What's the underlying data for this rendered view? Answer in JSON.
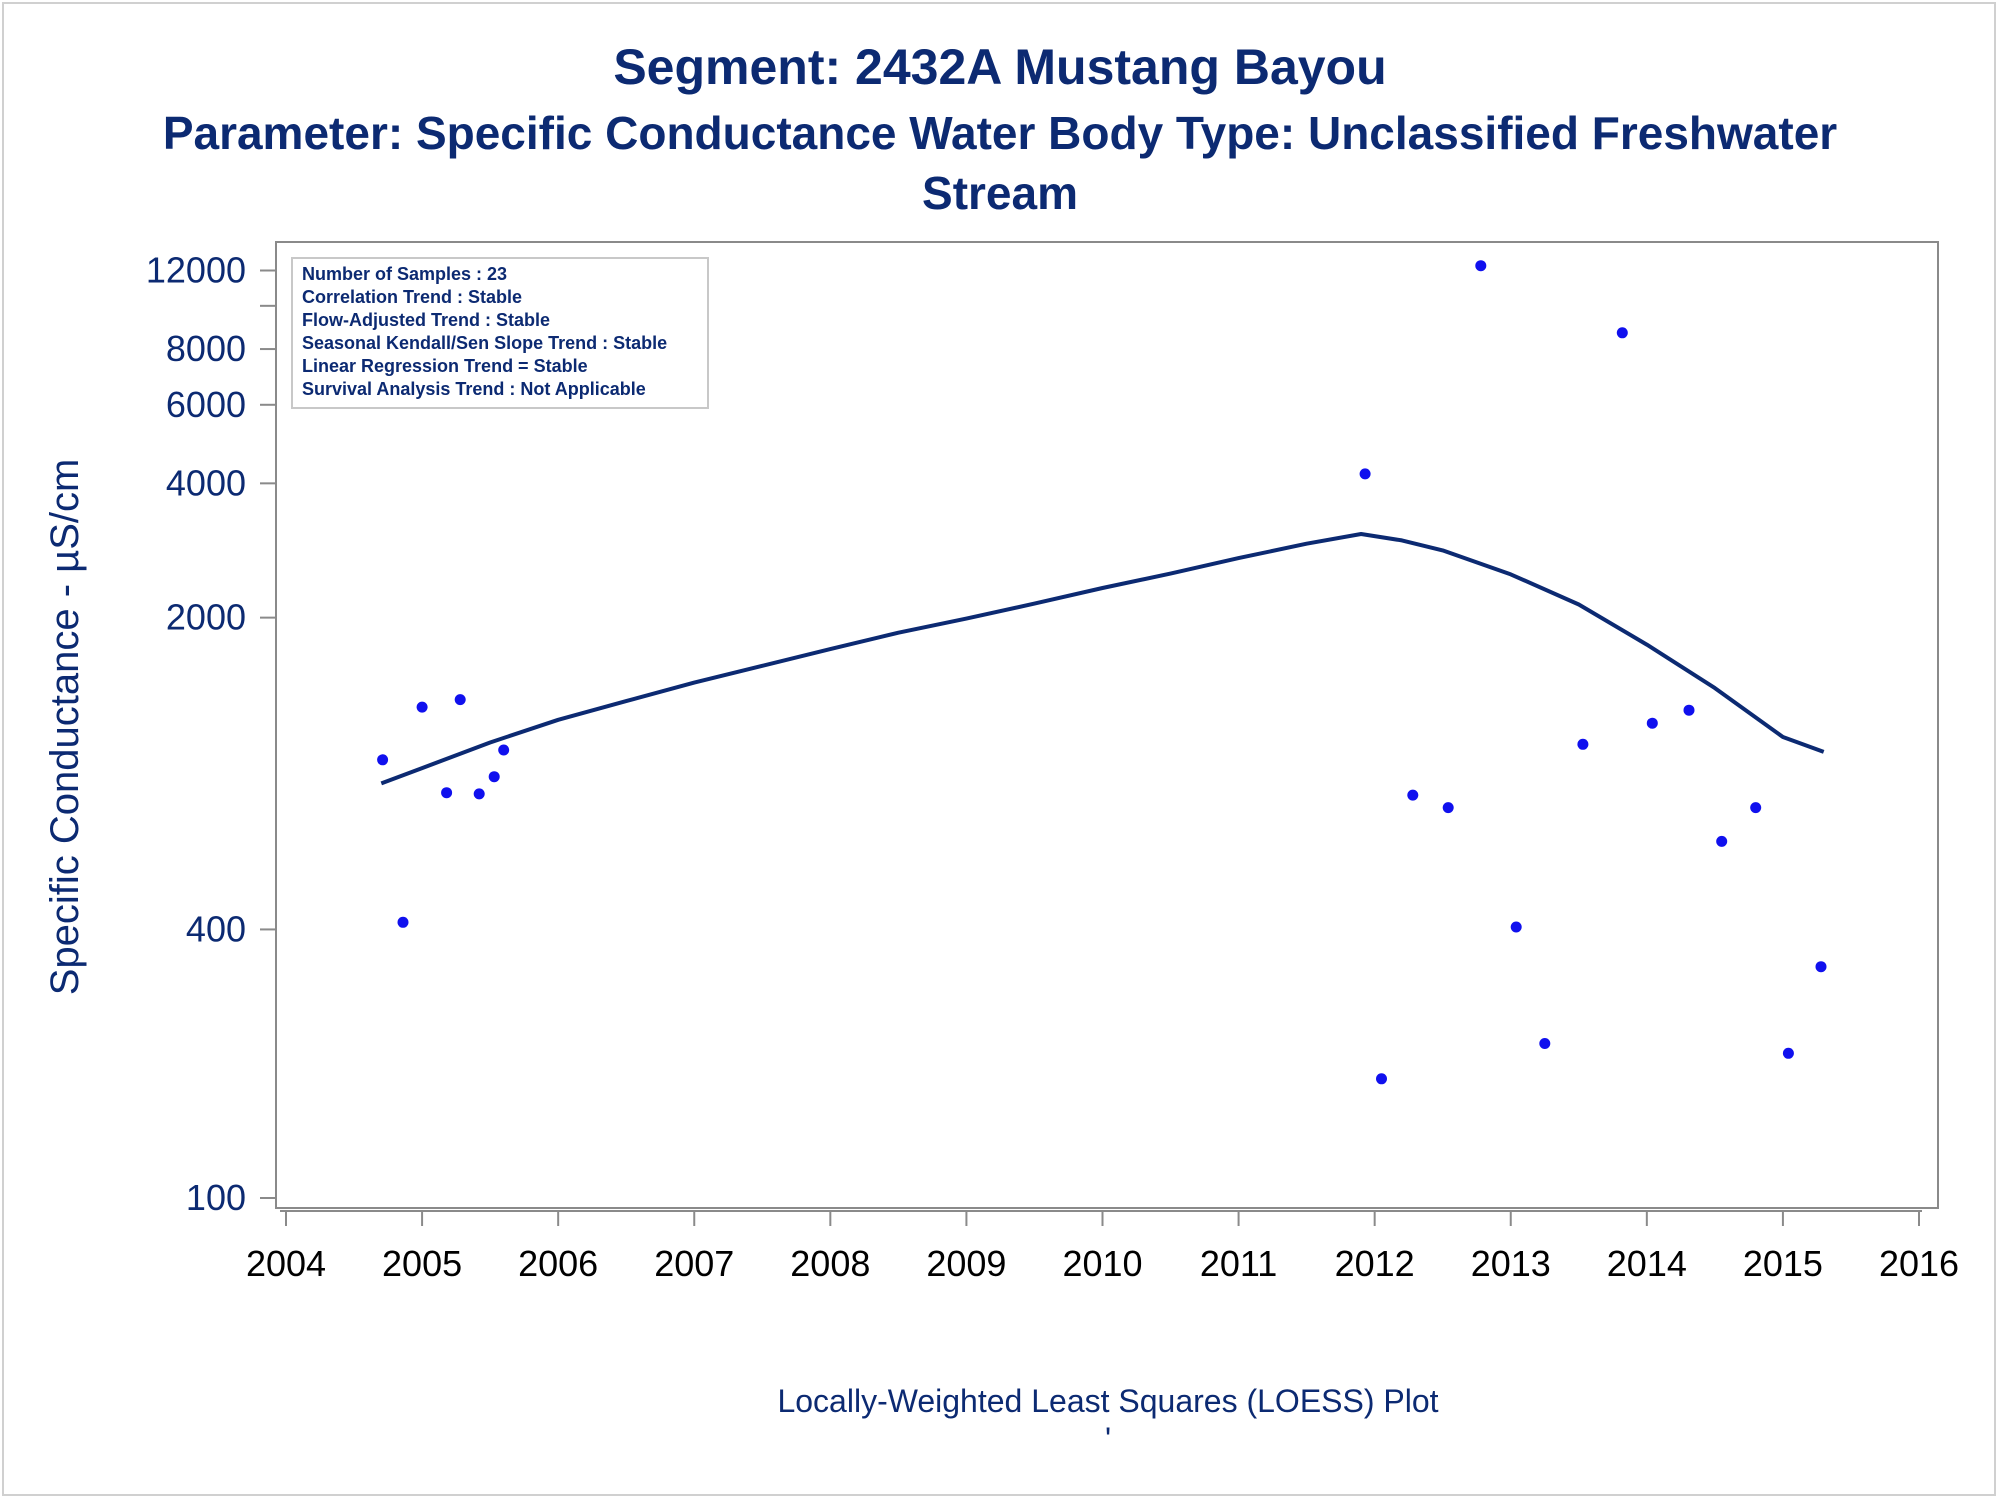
{
  "chart_data": {
    "type": "scatter",
    "title": "Segment: 2432A  Mustang Bayou",
    "subtitle_line1": "Parameter: Specific Conductance   Water Body Type: Unclassified Freshwater",
    "subtitle_line2": "Stream",
    "xlabel": "",
    "ylabel": "Specific Conductance -  µS/cm",
    "footnote": "Locally-Weighted Least Squares (LOESS) Plot",
    "footnote_mark": "'",
    "y_scale": "log",
    "xlim": [
      2004,
      2016
    ],
    "ylim": [
      100,
      13000
    ],
    "x_ticks": [
      2004,
      2005,
      2006,
      2007,
      2008,
      2009,
      2010,
      2011,
      2012,
      2013,
      2014,
      2015,
      2016
    ],
    "y_ticks": [
      100,
      400,
      2000,
      4000,
      6000,
      8000,
      12000
    ],
    "y_minor_ticks": [
      10000
    ],
    "grid": false,
    "legend": {
      "placement": "top-left",
      "entries": [
        "Number of Samples : 23",
        "Correlation Trend : Stable",
        "Flow-Adjusted Trend : Stable",
        "Seasonal Kendall/Sen Slope Trend : Stable",
        "Linear Regression Trend = Stable",
        "Survival Analysis Trend : Not Applicable"
      ]
    },
    "series": [
      {
        "kind": "points",
        "color": "#1010ee",
        "points": [
          [
            2004.71,
            960
          ],
          [
            2004.86,
            415
          ],
          [
            2005.0,
            1260
          ],
          [
            2005.18,
            810
          ],
          [
            2005.28,
            1310
          ],
          [
            2005.42,
            805
          ],
          [
            2005.53,
            880
          ],
          [
            2005.6,
            1010
          ],
          [
            2011.93,
            4200
          ],
          [
            2012.05,
            185
          ],
          [
            2012.28,
            800
          ],
          [
            2012.54,
            750
          ],
          [
            2012.78,
            12300
          ],
          [
            2013.04,
            405
          ],
          [
            2013.25,
            222
          ],
          [
            2013.53,
            1040
          ],
          [
            2013.82,
            8700
          ],
          [
            2014.04,
            1160
          ],
          [
            2014.31,
            1240
          ],
          [
            2014.55,
            630
          ],
          [
            2014.8,
            750
          ],
          [
            2015.04,
            211
          ],
          [
            2015.28,
            330
          ]
        ]
      },
      {
        "kind": "loess",
        "color": "#0c2a72",
        "points": [
          [
            2004.7,
            850
          ],
          [
            2005.0,
            920
          ],
          [
            2005.5,
            1050
          ],
          [
            2006.0,
            1180
          ],
          [
            2006.5,
            1300
          ],
          [
            2007.0,
            1430
          ],
          [
            2007.5,
            1560
          ],
          [
            2008.0,
            1700
          ],
          [
            2008.5,
            1850
          ],
          [
            2009.0,
            1990
          ],
          [
            2009.5,
            2150
          ],
          [
            2010.0,
            2330
          ],
          [
            2010.5,
            2510
          ],
          [
            2011.0,
            2720
          ],
          [
            2011.5,
            2930
          ],
          [
            2011.9,
            3080
          ],
          [
            2012.2,
            2980
          ],
          [
            2012.5,
            2830
          ],
          [
            2013.0,
            2500
          ],
          [
            2013.5,
            2140
          ],
          [
            2014.0,
            1740
          ],
          [
            2014.5,
            1390
          ],
          [
            2015.0,
            1080
          ],
          [
            2015.3,
            1000
          ]
        ]
      }
    ]
  }
}
